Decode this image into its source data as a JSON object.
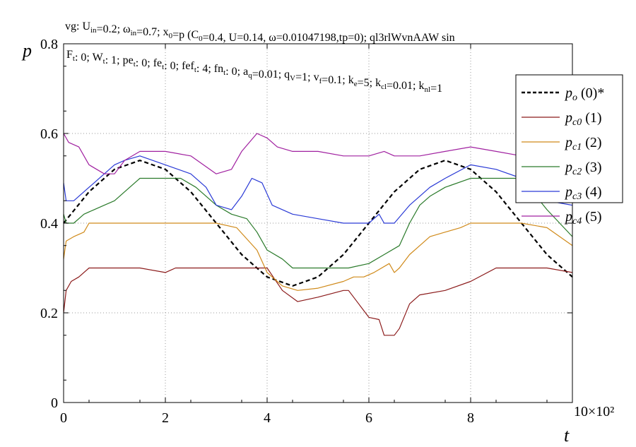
{
  "chart_data": {
    "type": "line",
    "header_line1": "vg: Uₑₙ=0.2; ωₑₙ=0.7; x₀=p (C₀=0.4, U=0.14, ω=0.01047198,tp=0); ql3rlWvnAAW sin",
    "header_line1_parts": [
      {
        "t": "vg: U"
      },
      {
        "t": "in",
        "sub": true
      },
      {
        "t": "=0.2; ω"
      },
      {
        "t": "in",
        "sub": true
      },
      {
        "t": "=0.7; x"
      },
      {
        "t": "0",
        "sub": true
      },
      {
        "t": "=p (C"
      },
      {
        "t": "0",
        "sub": true
      },
      {
        "t": "=0.4, U=0.14, ω=0.01047198,tp=0); ql3rlWvnAAW sin"
      }
    ],
    "header_line2_parts": [
      {
        "t": "F"
      },
      {
        "t": "t",
        "sub": true
      },
      {
        "t": ": 0; W"
      },
      {
        "t": "t",
        "sub": true
      },
      {
        "t": ": 1; pe"
      },
      {
        "t": "t",
        "sub": true
      },
      {
        "t": ": 0; fe"
      },
      {
        "t": "t",
        "sub": true
      },
      {
        "t": ": 0; fef"
      },
      {
        "t": "t",
        "sub": true
      },
      {
        "t": ": 4; fn"
      },
      {
        "t": "t",
        "sub": true
      },
      {
        "t": ": 0; a"
      },
      {
        "t": "q",
        "sub": true
      },
      {
        "t": "=0.01; q"
      },
      {
        "t": "V",
        "sub": true
      },
      {
        "t": "=1; v"
      },
      {
        "t": "f",
        "sub": true
      },
      {
        "t": "=0.1; k"
      },
      {
        "t": "e",
        "sub": true
      },
      {
        "t": "=5; k"
      },
      {
        "t": "cl",
        "sub": true
      },
      {
        "t": "=0.01; k"
      },
      {
        "t": "nl",
        "sub": true
      },
      {
        "t": "=1"
      }
    ],
    "ylabel": "p",
    "xlabel": "t",
    "x_multiplier": "10×10²",
    "xlim": [
      0,
      10
    ],
    "ylim": [
      0,
      0.8
    ],
    "x_ticks": [
      "0",
      "2",
      "4",
      "6",
      "8"
    ],
    "x_tick_values": [
      0,
      2,
      4,
      6,
      8
    ],
    "y_ticks": [
      "0",
      "0.2",
      "0.4",
      "0.6",
      "0.8"
    ],
    "y_tick_values": [
      0,
      0.2,
      0.4,
      0.6,
      0.8
    ],
    "legend_position": "top-right",
    "series": [
      {
        "name": "(0)*",
        "symbol": "p",
        "subscript": "o",
        "color": "#000000",
        "dashed": true,
        "x": [
          0,
          0.5,
          1,
          1.5,
          2,
          2.5,
          3,
          3.5,
          4,
          4.5,
          5,
          5.5,
          6,
          6.5,
          7,
          7.5,
          8,
          8.5,
          9,
          9.5,
          10
        ],
        "y": [
          0.4,
          0.47,
          0.52,
          0.54,
          0.52,
          0.47,
          0.4,
          0.33,
          0.28,
          0.26,
          0.28,
          0.33,
          0.4,
          0.47,
          0.52,
          0.54,
          0.52,
          0.47,
          0.4,
          0.33,
          0.28
        ]
      },
      {
        "name": "(1)",
        "symbol": "p",
        "subscript": "c0",
        "color": "#8b1a1a",
        "dashed": false,
        "x": [
          0,
          0.05,
          0.15,
          0.3,
          0.5,
          1,
          1.5,
          2,
          2.2,
          3,
          3.5,
          4,
          4.3,
          4.6,
          5,
          5.5,
          5.6,
          5.8,
          6,
          6.2,
          6.3,
          6.5,
          6.6,
          6.8,
          7,
          7.5,
          8,
          8.5,
          9,
          9.5,
          10
        ],
        "y": [
          0.2,
          0.25,
          0.27,
          0.28,
          0.3,
          0.3,
          0.3,
          0.29,
          0.3,
          0.3,
          0.3,
          0.3,
          0.25,
          0.225,
          0.235,
          0.25,
          0.25,
          0.22,
          0.19,
          0.185,
          0.15,
          0.15,
          0.165,
          0.22,
          0.24,
          0.25,
          0.27,
          0.3,
          0.3,
          0.3,
          0.29
        ]
      },
      {
        "name": "(2)",
        "symbol": "p",
        "subscript": "c1",
        "color": "#d08a1a",
        "dashed": false,
        "x": [
          0,
          0.05,
          0.2,
          0.4,
          0.5,
          1,
          1.5,
          2,
          2.5,
          3,
          3.4,
          3.8,
          4,
          4.3,
          4.6,
          5,
          5.5,
          5.7,
          5.9,
          6.1,
          6.4,
          6.5,
          6.6,
          6.8,
          7,
          7.2,
          7.5,
          7.8,
          8,
          8.5,
          9,
          9.5,
          10
        ],
        "y": [
          0.32,
          0.36,
          0.37,
          0.38,
          0.4,
          0.4,
          0.4,
          0.4,
          0.4,
          0.4,
          0.39,
          0.34,
          0.29,
          0.26,
          0.25,
          0.255,
          0.27,
          0.28,
          0.28,
          0.29,
          0.31,
          0.29,
          0.3,
          0.33,
          0.35,
          0.37,
          0.38,
          0.39,
          0.4,
          0.4,
          0.4,
          0.39,
          0.35
        ]
      },
      {
        "name": "(3)",
        "symbol": "p",
        "subscript": "c2",
        "color": "#2a7a2a",
        "dashed": false,
        "x": [
          0,
          0.05,
          0.2,
          0.4,
          0.6,
          0.8,
          1,
          1.2,
          1.5,
          2,
          2.3,
          2.6,
          3,
          3.3,
          3.6,
          3.8,
          4,
          4.3,
          4.5,
          4.8,
          5,
          5.6,
          6,
          6.3,
          6.6,
          6.8,
          7,
          7.2,
          7.5,
          8,
          8.5,
          9,
          9.5,
          10
        ],
        "y": [
          0.42,
          0.4,
          0.4,
          0.42,
          0.43,
          0.44,
          0.45,
          0.47,
          0.5,
          0.5,
          0.5,
          0.48,
          0.44,
          0.42,
          0.41,
          0.38,
          0.34,
          0.32,
          0.3,
          0.3,
          0.3,
          0.3,
          0.31,
          0.33,
          0.35,
          0.4,
          0.44,
          0.46,
          0.48,
          0.5,
          0.5,
          0.5,
          0.43,
          0.37
        ]
      },
      {
        "name": "(4)",
        "symbol": "p",
        "subscript": "c3",
        "color": "#2a3ad6",
        "dashed": false,
        "x": [
          0,
          0.05,
          0.2,
          0.4,
          0.6,
          0.8,
          1,
          1.2,
          1.5,
          2,
          2.5,
          2.8,
          3,
          3.3,
          3.5,
          3.7,
          3.9,
          4.1,
          4.5,
          5,
          5.5,
          5.8,
          6,
          6.2,
          6.3,
          6.5,
          6.8,
          7,
          7.2,
          7.5,
          8,
          8.5,
          9,
          9.5,
          10
        ],
        "y": [
          0.49,
          0.45,
          0.45,
          0.47,
          0.49,
          0.51,
          0.53,
          0.54,
          0.55,
          0.53,
          0.51,
          0.48,
          0.44,
          0.43,
          0.46,
          0.5,
          0.49,
          0.44,
          0.42,
          0.41,
          0.4,
          0.4,
          0.4,
          0.42,
          0.4,
          0.4,
          0.44,
          0.46,
          0.48,
          0.5,
          0.53,
          0.52,
          0.5,
          0.45,
          0.44
        ]
      },
      {
        "name": "(5)",
        "symbol": "p",
        "subscript": "c4",
        "color": "#a020a0",
        "dashed": false,
        "x": [
          0,
          0.1,
          0.3,
          0.5,
          0.8,
          1,
          1.2,
          1.5,
          2,
          2.5,
          3,
          3.3,
          3.5,
          3.8,
          4,
          4.2,
          4.5,
          5,
          5.5,
          6,
          6.3,
          6.5,
          7,
          7.5,
          8,
          8.5,
          9,
          9.5,
          10
        ],
        "y": [
          0.6,
          0.58,
          0.57,
          0.53,
          0.51,
          0.51,
          0.54,
          0.56,
          0.56,
          0.55,
          0.51,
          0.52,
          0.56,
          0.6,
          0.59,
          0.57,
          0.56,
          0.56,
          0.55,
          0.55,
          0.56,
          0.55,
          0.55,
          0.56,
          0.57,
          0.56,
          0.55,
          0.55,
          0.56
        ]
      }
    ]
  }
}
